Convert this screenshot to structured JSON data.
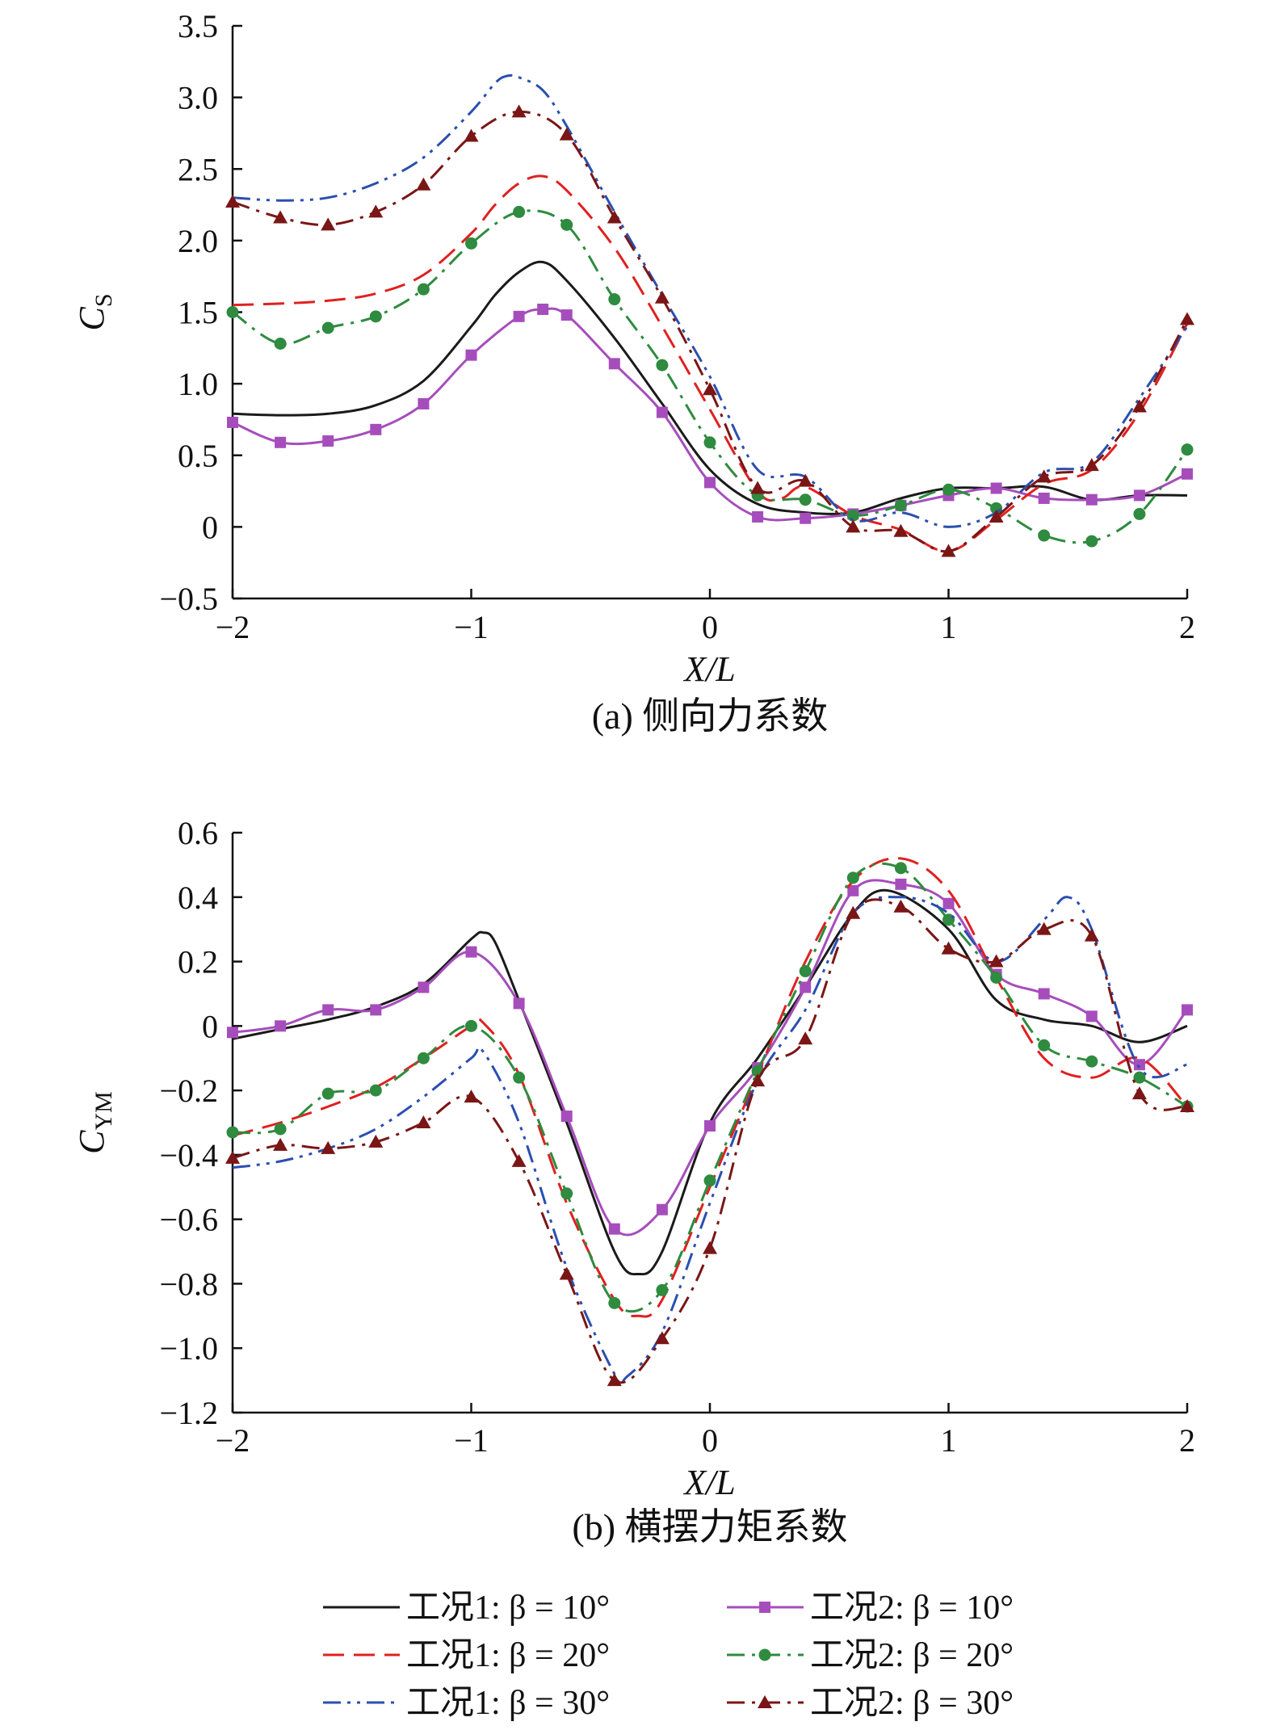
{
  "chart_data": [
    {
      "type": "line",
      "caption": "(a) 侧向力系数",
      "xlabel": "X/L",
      "ylabel_main": "C",
      "ylabel_sub": "S",
      "xlim": [
        -2,
        2
      ],
      "ylim": [
        -0.5,
        3.5
      ],
      "xticks": [
        -2,
        -1,
        0,
        1,
        2
      ],
      "xtick_labels": [
        "−2",
        "−1",
        "0",
        "1",
        "2"
      ],
      "yticks": [
        -0.5,
        0,
        0.5,
        1,
        1.5,
        2,
        2.5,
        3,
        3.5
      ],
      "ytick_labels": [
        "−0.5",
        "0",
        "0.5",
        "1.0",
        "1.5",
        "2.0",
        "2.5",
        "3.0",
        "3.5"
      ],
      "grid": false,
      "series": [
        {
          "name": "工况1: β = 10°",
          "color": "#1a1a1a",
          "dash": "solid",
          "marker": "none",
          "x": [
            -2,
            -1.8,
            -1.6,
            -1.4,
            -1.2,
            -1.0,
            -0.9,
            -0.8,
            -0.7,
            -0.6,
            -0.4,
            -0.2,
            0,
            0.2,
            0.4,
            0.6,
            0.8,
            1.0,
            1.2,
            1.4,
            1.6,
            1.8,
            2.0
          ],
          "y": [
            0.79,
            0.78,
            0.79,
            0.85,
            1.02,
            1.4,
            1.62,
            1.78,
            1.85,
            1.72,
            1.32,
            0.86,
            0.4,
            0.16,
            0.1,
            0.1,
            0.2,
            0.27,
            0.27,
            0.28,
            0.19,
            0.22,
            0.22
          ]
        },
        {
          "name": "工况2: β = 10°",
          "color": "#a64dbc",
          "dash": "solid",
          "marker": "square",
          "x": [
            -2,
            -1.8,
            -1.6,
            -1.4,
            -1.2,
            -1.0,
            -0.8,
            -0.7,
            -0.6,
            -0.4,
            -0.2,
            0,
            0.2,
            0.4,
            0.6,
            0.8,
            1.0,
            1.2,
            1.4,
            1.6,
            1.8,
            2.0
          ],
          "y": [
            0.73,
            0.59,
            0.6,
            0.68,
            0.86,
            1.2,
            1.47,
            1.52,
            1.48,
            1.14,
            0.8,
            0.31,
            0.07,
            0.06,
            0.09,
            0.15,
            0.22,
            0.27,
            0.2,
            0.19,
            0.22,
            0.37
          ]
        },
        {
          "name": "工况1: β = 20°",
          "color": "#e02020",
          "dash": "longdash",
          "marker": "none",
          "x": [
            -2,
            -1.8,
            -1.6,
            -1.4,
            -1.2,
            -1.0,
            -0.9,
            -0.8,
            -0.7,
            -0.6,
            -0.4,
            -0.2,
            0,
            0.2,
            0.3,
            0.4,
            0.6,
            0.8,
            1.0,
            1.2,
            1.4,
            1.6,
            1.8,
            2.0
          ],
          "y": [
            1.55,
            1.56,
            1.58,
            1.63,
            1.76,
            2.05,
            2.25,
            2.4,
            2.45,
            2.35,
            1.95,
            1.4,
            0.82,
            0.25,
            0.2,
            0.28,
            0.08,
            -0.02,
            -0.17,
            0.05,
            0.3,
            0.4,
            0.8,
            1.42
          ]
        },
        {
          "name": "工况2: β = 20°",
          "color": "#2e8b3f",
          "dash": "dashdot",
          "marker": "circle",
          "x": [
            -2,
            -1.8,
            -1.6,
            -1.4,
            -1.2,
            -1.0,
            -0.8,
            -0.6,
            -0.4,
            -0.2,
            0,
            0.2,
            0.4,
            0.6,
            0.8,
            1.0,
            1.2,
            1.4,
            1.6,
            1.8,
            2.0
          ],
          "y": [
            1.5,
            1.28,
            1.39,
            1.47,
            1.66,
            1.98,
            2.2,
            2.11,
            1.59,
            1.13,
            0.59,
            0.22,
            0.19,
            0.08,
            0.15,
            0.26,
            0.13,
            -0.06,
            -0.1,
            0.09,
            0.54
          ]
        },
        {
          "name": "工况1: β = 30°",
          "color": "#2a4fb0",
          "dash": "dashdotdot",
          "marker": "none",
          "x": [
            -2,
            -1.8,
            -1.6,
            -1.4,
            -1.2,
            -1.0,
            -0.9,
            -0.85,
            -0.8,
            -0.7,
            -0.6,
            -0.4,
            -0.2,
            0,
            0.2,
            0.4,
            0.6,
            0.8,
            1.0,
            1.2,
            1.4,
            1.6,
            1.8,
            2.0
          ],
          "y": [
            2.3,
            2.28,
            2.3,
            2.4,
            2.58,
            2.9,
            3.1,
            3.15,
            3.14,
            3.05,
            2.8,
            2.2,
            1.62,
            1.05,
            0.4,
            0.35,
            0.05,
            0.1,
            0.0,
            0.1,
            0.38,
            0.45,
            0.9,
            1.4
          ]
        },
        {
          "name": "工况2: β = 30°",
          "color": "#7a1616",
          "dash": "dashdot",
          "marker": "triangle",
          "x": [
            -2,
            -1.8,
            -1.6,
            -1.4,
            -1.2,
            -1.0,
            -0.8,
            -0.6,
            -0.4,
            -0.2,
            0,
            0.2,
            0.4,
            0.6,
            0.8,
            1.0,
            1.2,
            1.4,
            1.6,
            1.8,
            2.0
          ],
          "y": [
            2.27,
            2.16,
            2.11,
            2.2,
            2.39,
            2.73,
            2.9,
            2.74,
            2.16,
            1.6,
            0.96,
            0.27,
            0.32,
            0.0,
            -0.03,
            -0.17,
            0.07,
            0.35,
            0.43,
            0.84,
            1.45
          ]
        }
      ]
    },
    {
      "type": "line",
      "caption": "(b) 横摆力矩系数",
      "xlabel": "X/L",
      "ylabel_main": "C",
      "ylabel_sub": "YM",
      "xlim": [
        -2,
        2
      ],
      "ylim": [
        -1.2,
        0.6
      ],
      "xticks": [
        -2,
        -1,
        0,
        1,
        2
      ],
      "xtick_labels": [
        "−2",
        "−1",
        "0",
        "1",
        "2"
      ],
      "yticks": [
        -1.2,
        -1.0,
        -0.8,
        -0.6,
        -0.4,
        -0.2,
        0,
        0.2,
        0.4,
        0.6
      ],
      "ytick_labels": [
        "−1.2",
        "−1.0",
        "−0.8",
        "−0.6",
        "−0.4",
        "−0.2",
        "0",
        "0.2",
        "0.4",
        "0.6"
      ],
      "grid": false,
      "series": [
        {
          "name": "工况1: β = 10°",
          "color": "#1a1a1a",
          "dash": "solid",
          "marker": "none",
          "x": [
            -2,
            -1.8,
            -1.6,
            -1.4,
            -1.2,
            -1.0,
            -0.95,
            -0.9,
            -0.8,
            -0.6,
            -0.4,
            -0.3,
            -0.2,
            0,
            0.2,
            0.4,
            0.6,
            0.75,
            1.0,
            1.2,
            1.4,
            1.6,
            1.8,
            2.0
          ],
          "y": [
            -0.04,
            -0.01,
            0.02,
            0.06,
            0.13,
            0.27,
            0.29,
            0.26,
            0.08,
            -0.3,
            -0.7,
            -0.77,
            -0.7,
            -0.3,
            -0.1,
            0.12,
            0.35,
            0.42,
            0.3,
            0.08,
            0.02,
            0.0,
            -0.05,
            0.0
          ]
        },
        {
          "name": "工况2: β = 10°",
          "color": "#a64dbc",
          "dash": "solid",
          "marker": "square",
          "x": [
            -2,
            -1.8,
            -1.6,
            -1.4,
            -1.2,
            -1.0,
            -0.8,
            -0.6,
            -0.4,
            -0.2,
            0,
            0.2,
            0.4,
            0.6,
            0.8,
            1.0,
            1.2,
            1.4,
            1.6,
            1.8,
            2.0
          ],
          "y": [
            -0.02,
            0.0,
            0.05,
            0.05,
            0.12,
            0.23,
            0.07,
            -0.28,
            -0.63,
            -0.57,
            -0.31,
            -0.13,
            0.12,
            0.42,
            0.44,
            0.38,
            0.16,
            0.1,
            0.03,
            -0.12,
            0.05
          ]
        },
        {
          "name": "工况1: β = 20°",
          "color": "#e02020",
          "dash": "longdash",
          "marker": "none",
          "x": [
            -2,
            -1.8,
            -1.6,
            -1.4,
            -1.2,
            -1.0,
            -0.95,
            -0.8,
            -0.6,
            -0.4,
            -0.3,
            -0.2,
            0,
            0.2,
            0.4,
            0.6,
            0.8,
            1.0,
            1.2,
            1.4,
            1.6,
            1.8,
            2.0
          ],
          "y": [
            -0.34,
            -0.3,
            -0.25,
            -0.19,
            -0.1,
            0.0,
            0.01,
            -0.15,
            -0.55,
            -0.85,
            -0.9,
            -0.85,
            -0.5,
            -0.15,
            0.2,
            0.45,
            0.52,
            0.42,
            0.15,
            -0.1,
            -0.16,
            -0.1,
            -0.25
          ]
        },
        {
          "name": "工况2: β = 20°",
          "color": "#2e8b3f",
          "dash": "dashdot",
          "marker": "circle",
          "x": [
            -2,
            -1.8,
            -1.6,
            -1.4,
            -1.2,
            -1.0,
            -0.8,
            -0.6,
            -0.4,
            -0.2,
            0,
            0.2,
            0.4,
            0.6,
            0.8,
            1.0,
            1.2,
            1.4,
            1.6,
            1.8,
            2.0
          ],
          "y": [
            -0.33,
            -0.32,
            -0.21,
            -0.2,
            -0.1,
            0.0,
            -0.16,
            -0.52,
            -0.86,
            -0.82,
            -0.48,
            -0.14,
            0.17,
            0.46,
            0.49,
            0.33,
            0.15,
            -0.06,
            -0.11,
            -0.16,
            -0.25
          ]
        },
        {
          "name": "工况1: β = 30°",
          "color": "#2a4fb0",
          "dash": "dashdotdot",
          "marker": "none",
          "x": [
            -2,
            -1.8,
            -1.6,
            -1.4,
            -1.2,
            -1.0,
            -0.95,
            -0.8,
            -0.6,
            -0.4,
            -0.35,
            -0.2,
            0,
            0.2,
            0.4,
            0.6,
            0.8,
            1.0,
            1.2,
            1.4,
            1.5,
            1.6,
            1.8,
            2.0
          ],
          "y": [
            -0.44,
            -0.42,
            -0.38,
            -0.32,
            -0.22,
            -0.1,
            -0.08,
            -0.3,
            -0.75,
            -1.08,
            -1.09,
            -0.95,
            -0.55,
            -0.17,
            0.05,
            0.35,
            0.4,
            0.35,
            0.2,
            0.33,
            0.4,
            0.3,
            -0.13,
            -0.12
          ]
        },
        {
          "name": "工况2: β = 30°",
          "color": "#7a1616",
          "dash": "dashdot",
          "marker": "triangle",
          "x": [
            -2,
            -1.8,
            -1.6,
            -1.4,
            -1.2,
            -1.0,
            -0.8,
            -0.6,
            -0.4,
            -0.2,
            0,
            0.2,
            0.4,
            0.6,
            0.8,
            1.0,
            1.2,
            1.4,
            1.6,
            1.8,
            2.0
          ],
          "y": [
            -0.41,
            -0.37,
            -0.38,
            -0.36,
            -0.3,
            -0.22,
            -0.42,
            -0.77,
            -1.1,
            -0.97,
            -0.69,
            -0.17,
            -0.04,
            0.35,
            0.37,
            0.24,
            0.2,
            0.3,
            0.28,
            -0.21,
            -0.25
          ]
        }
      ]
    }
  ],
  "legend": {
    "placement": "bottom",
    "columns": 2,
    "entries": [
      {
        "label": "工况1: β = 10°",
        "series_index": 0
      },
      {
        "label": "工况2: β = 10°",
        "series_index": 1
      },
      {
        "label": "工况1: β = 20°",
        "series_index": 2
      },
      {
        "label": "工况2: β = 20°",
        "series_index": 3
      },
      {
        "label": "工况1: β = 30°",
        "series_index": 4
      },
      {
        "label": "工况2: β = 30°",
        "series_index": 5
      }
    ]
  }
}
